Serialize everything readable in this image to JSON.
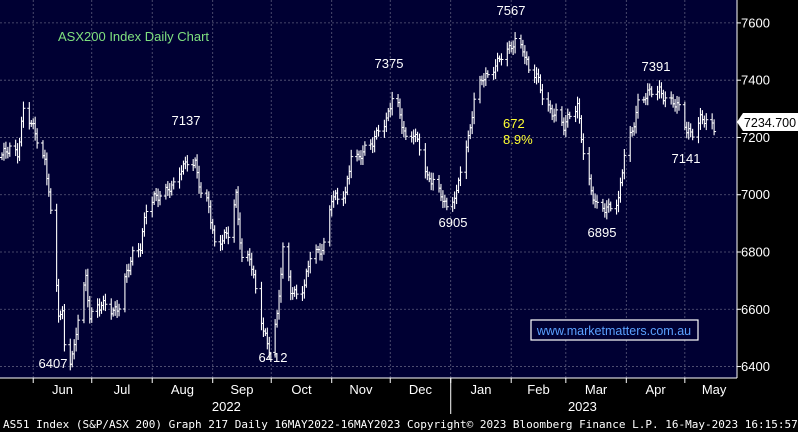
{
  "chart_data": {
    "type": "bar",
    "style": "ohlc-high-low-bars",
    "title": "ASX200 Index Daily Chart",
    "title_color": "#7fe07f",
    "line_color": "#ffffff",
    "background": "#000033",
    "grid": true,
    "grid_color": "#5a5a7a",
    "ylim": [
      6360,
      7680
    ],
    "yticks": [
      6400,
      6600,
      6800,
      7000,
      7200,
      7400,
      7600
    ],
    "months": [
      "Jun",
      "Jul",
      "Aug",
      "Sep",
      "Oct",
      "Nov",
      "Dec",
      "Jan",
      "Feb",
      "Mar",
      "Apr",
      "May"
    ],
    "years": [
      "2022",
      "2023"
    ],
    "last_price": "7234.700",
    "watermark": "www.marketmatters.com.au",
    "annotations": [
      {
        "text": "6407",
        "color": "#ffffff"
      },
      {
        "text": "7137",
        "color": "#ffffff"
      },
      {
        "text": "6412",
        "color": "#ffffff"
      },
      {
        "text": "7375",
        "color": "#ffffff"
      },
      {
        "text": "6905",
        "color": "#ffffff"
      },
      {
        "text": "7567",
        "color": "#ffffff"
      },
      {
        "text": "672",
        "color": "#ffff33"
      },
      {
        "text": "8.9%",
        "color": "#ffff33"
      },
      {
        "text": "6895",
        "color": "#ffffff"
      },
      {
        "text": "7391",
        "color": "#ffffff"
      },
      {
        "text": "7141",
        "color": "#ffffff"
      }
    ],
    "series": [
      {
        "key": [
          [
            "2022-05-16",
            7130
          ],
          [
            "2022-05-20",
            7170
          ],
          [
            "2022-05-24",
            7150
          ],
          [
            "2022-05-27",
            7290
          ],
          [
            "2022-06-01",
            7230
          ],
          [
            "2022-06-03",
            7200
          ],
          [
            "2022-06-07",
            7120
          ],
          [
            "2022-06-09",
            7020
          ],
          [
            "2022-06-10",
            6930
          ],
          [
            "2022-06-14",
            6580
          ],
          [
            "2022-06-16",
            6580
          ],
          [
            "2022-06-17",
            6480
          ],
          [
            "2022-06-20",
            6430
          ],
          [
            "2022-06-22",
            6470
          ],
          [
            "2022-06-24",
            6570
          ],
          [
            "2022-06-28",
            6700
          ],
          [
            "2022-06-30",
            6570
          ],
          [
            "2022-07-04",
            6620
          ],
          [
            "2022-07-08",
            6620
          ],
          [
            "2022-07-12",
            6580
          ],
          [
            "2022-07-15",
            6610
          ],
          [
            "2022-07-19",
            6740
          ],
          [
            "2022-07-22",
            6790
          ],
          [
            "2022-07-26",
            6810
          ],
          [
            "2022-07-29",
            6950
          ],
          [
            "2022-08-02",
            7000
          ],
          [
            "2022-08-05",
            7000
          ],
          [
            "2022-08-09",
            7010
          ],
          [
            "2022-08-12",
            7030
          ],
          [
            "2022-08-16",
            7100
          ],
          [
            "2022-08-19",
            7120
          ],
          [
            "2022-08-23",
            7100
          ],
          [
            "2022-08-26",
            7000
          ],
          [
            "2022-08-30",
            6970
          ],
          [
            "2022-09-02",
            6830
          ],
          [
            "2022-09-06",
            6840
          ],
          [
            "2022-09-09",
            6860
          ],
          [
            "2022-09-13",
            7000
          ],
          [
            "2022-09-16",
            6780
          ],
          [
            "2022-09-20",
            6780
          ],
          [
            "2022-09-23",
            6660
          ],
          [
            "2022-09-27",
            6530
          ],
          [
            "2022-09-30",
            6470
          ],
          [
            "2022-10-04",
            6570
          ],
          [
            "2022-10-07",
            6800
          ],
          [
            "2022-10-11",
            6670
          ],
          [
            "2022-10-14",
            6660
          ],
          [
            "2022-10-18",
            6680
          ],
          [
            "2022-10-21",
            6780
          ],
          [
            "2022-10-25",
            6800
          ],
          [
            "2022-10-28",
            6830
          ],
          [
            "2022-11-01",
            6990
          ],
          [
            "2022-11-04",
            6980
          ],
          [
            "2022-11-08",
            7000
          ],
          [
            "2022-11-11",
            7150
          ],
          [
            "2022-11-15",
            7130
          ],
          [
            "2022-11-18",
            7150
          ],
          [
            "2022-11-22",
            7180
          ],
          [
            "2022-11-25",
            7240
          ],
          [
            "2022-11-29",
            7260
          ],
          [
            "2022-12-02",
            7330
          ],
          [
            "2022-12-05",
            7300
          ],
          [
            "2022-12-09",
            7200
          ],
          [
            "2022-12-13",
            7220
          ],
          [
            "2022-12-16",
            7160
          ],
          [
            "2022-12-20",
            7050
          ],
          [
            "2022-12-23",
            7060
          ],
          [
            "2022-12-28",
            6990
          ],
          [
            "2022-12-30",
            6940
          ],
          [
            "2023-01-04",
            7000
          ],
          [
            "2023-01-06",
            7100
          ],
          [
            "2023-01-10",
            7200
          ],
          [
            "2023-01-13",
            7320
          ],
          [
            "2023-01-17",
            7400
          ],
          [
            "2023-01-20",
            7420
          ],
          [
            "2023-01-24",
            7460
          ],
          [
            "2023-01-27",
            7480
          ],
          [
            "2023-01-31",
            7500
          ],
          [
            "2023-02-03",
            7540
          ],
          [
            "2023-02-07",
            7520
          ],
          [
            "2023-02-10",
            7430
          ],
          [
            "2023-02-14",
            7410
          ],
          [
            "2023-02-17",
            7350
          ],
          [
            "2023-02-21",
            7300
          ],
          [
            "2023-02-24",
            7280
          ],
          [
            "2023-02-28",
            7230
          ],
          [
            "2023-03-03",
            7280
          ],
          [
            "2023-03-07",
            7320
          ],
          [
            "2023-03-10",
            7150
          ],
          [
            "2023-03-14",
            7000
          ],
          [
            "2023-03-17",
            6960
          ],
          [
            "2023-03-21",
            6960
          ],
          [
            "2023-03-24",
            6960
          ],
          [
            "2023-03-28",
            6970
          ],
          [
            "2023-03-31",
            7140
          ],
          [
            "2023-04-04",
            7230
          ],
          [
            "2023-04-07",
            7320
          ],
          [
            "2023-04-11",
            7340
          ],
          [
            "2023-04-14",
            7360
          ],
          [
            "2023-04-18",
            7370
          ],
          [
            "2023-04-21",
            7340
          ],
          [
            "2023-04-26",
            7310
          ],
          [
            "2023-04-28",
            7300
          ],
          [
            "2023-05-02",
            7230
          ],
          [
            "2023-05-05",
            7220
          ],
          [
            "2023-05-09",
            7260
          ],
          [
            "2023-05-12",
            7250
          ],
          [
            "2023-05-16",
            7234.7
          ]
        ]
      }
    ]
  },
  "footer": "AS51 Index (S&P/ASX 200) Graph 217  Daily 16MAY2022-16MAY2023 Copyright© 2023 Bloomberg Finance L.P. 16-May-2023 16:15:57"
}
